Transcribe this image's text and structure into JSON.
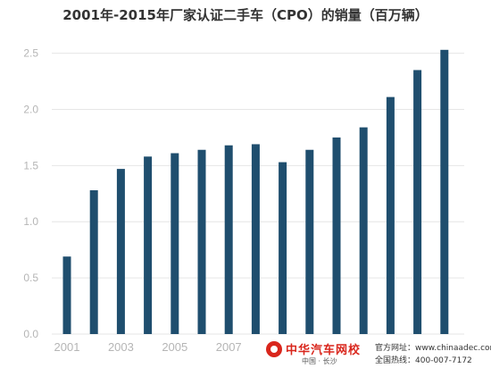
{
  "chart_data": {
    "type": "bar",
    "title": "2001年-2015年厂家认证二手车（CPO）的销量（百万辆）",
    "categories": [
      "2001",
      "2002",
      "2003",
      "2004",
      "2005",
      "2006",
      "2007",
      "2008",
      "2009",
      "2010",
      "2011",
      "2012",
      "2013",
      "2014",
      "2015"
    ],
    "x_tick_labels": [
      "2001",
      "2003",
      "2005",
      "2007"
    ],
    "values": [
      0.69,
      1.28,
      1.47,
      1.58,
      1.61,
      1.64,
      1.68,
      1.69,
      1.53,
      1.64,
      1.75,
      1.84,
      2.11,
      2.35,
      2.53
    ],
    "y_ticks": [
      "0.0",
      "0.5",
      "1.0",
      "1.5",
      "2.0",
      "2.5"
    ],
    "ylim": [
      0,
      2.6
    ],
    "grid": true,
    "bar_color": "#1f4e6e",
    "grid_color": "#e6e6e6"
  },
  "watermark": {
    "logo_text": "中华汽车网校",
    "logo_sub": "中国 · 长沙",
    "site_label": "官方网址：",
    "site_url": "www.chinaadec.com",
    "tel_label": "全国热线：",
    "tel": "400-007-7172",
    "brand_color": "#d9261c"
  }
}
